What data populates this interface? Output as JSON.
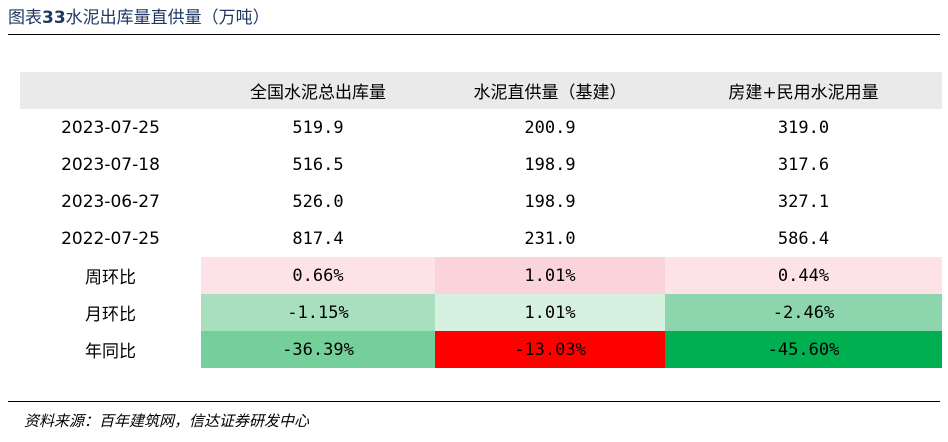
{
  "title": {
    "prefix": "图表",
    "number": "33",
    "text": "水泥出库量直供量（万吨）"
  },
  "table": {
    "headers": [
      "",
      "全国水泥总出库量",
      "水泥直供量（基建）",
      "房建+民用水泥用量"
    ],
    "rows": [
      {
        "label": "2023-07-25",
        "values": [
          "519.9",
          "200.9",
          "319.0"
        ]
      },
      {
        "label": "2023-07-18",
        "values": [
          "516.5",
          "198.9",
          "317.6"
        ]
      },
      {
        "label": "2023-06-27",
        "values": [
          "526.0",
          "198.9",
          "327.1"
        ]
      },
      {
        "label": "2022-07-25",
        "values": [
          "817.4",
          "231.0",
          "586.4"
        ]
      },
      {
        "label": "周环比",
        "values": [
          "0.66%",
          "1.01%",
          "0.44%"
        ]
      },
      {
        "label": "月环比",
        "values": [
          "-1.15%",
          "1.01%",
          "-2.46%"
        ]
      },
      {
        "label": "年同比",
        "values": [
          "-36.39%",
          "-13.03%",
          "-45.60%"
        ]
      }
    ],
    "cell_colors": {
      "wow": [
        "#fde3e7",
        "#fad4da",
        "#fde3e7"
      ],
      "mom": [
        "#a8e0bf",
        "#d7f1e1",
        "#8dd5ac"
      ],
      "yoy": [
        "#75cf9a",
        "#ff0000",
        "#00b050"
      ]
    }
  },
  "source": "资料来源：百年建筑网，信达证券研发中心"
}
